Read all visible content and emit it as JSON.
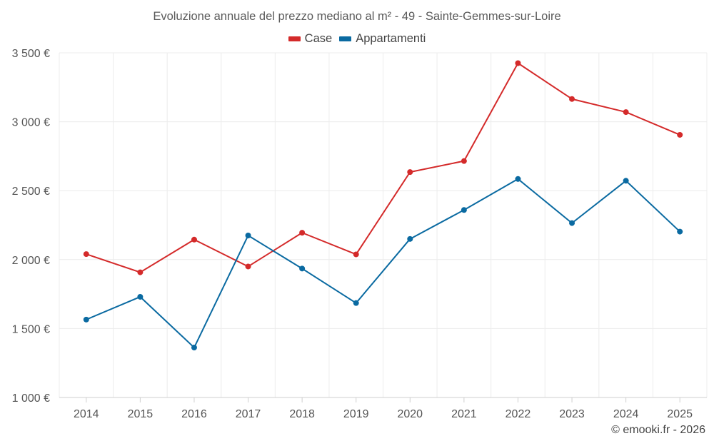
{
  "chart_data": {
    "type": "line",
    "title": "Evoluzione annuale del prezzo mediano al m² - 49 - Sainte-Gemmes-sur-Loire",
    "categories": [
      "2014",
      "2015",
      "2016",
      "2017",
      "2018",
      "2019",
      "2020",
      "2021",
      "2022",
      "2023",
      "2024",
      "2025"
    ],
    "series": [
      {
        "name": "Case",
        "color": "#d42a2a",
        "values": [
          2040,
          1908,
          2145,
          1950,
          2195,
          2038,
          2635,
          2715,
          3425,
          3165,
          3070,
          2905
        ]
      },
      {
        "name": "Appartamenti",
        "color": "#0a6aa1",
        "values": [
          1565,
          1730,
          1362,
          2175,
          1935,
          1685,
          2150,
          2360,
          2585,
          2265,
          2572,
          2203
        ]
      }
    ],
    "ylim": [
      1000,
      3500
    ],
    "yticks": [
      1000,
      1500,
      2000,
      2500,
      3000,
      3500
    ],
    "ytick_labels": [
      "1 000 €",
      "1 500 €",
      "2 000 €",
      "2 500 €",
      "3 000 €",
      "3 500 €"
    ],
    "xlabel": "",
    "ylabel": "",
    "grid": true,
    "legend": "top-center"
  },
  "footer": {
    "credit": "© emooki.fr - 2026"
  }
}
